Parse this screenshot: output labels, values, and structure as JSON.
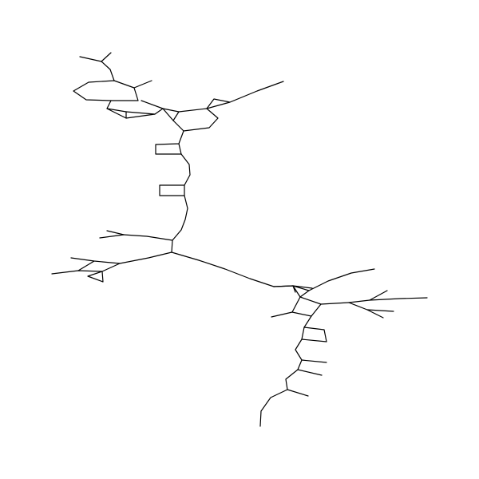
{
  "figure": {
    "kind": "skeletal-structure-line-drawing",
    "background": "#ffffff",
    "stroke_color": "#000000",
    "labels": []
  }
}
